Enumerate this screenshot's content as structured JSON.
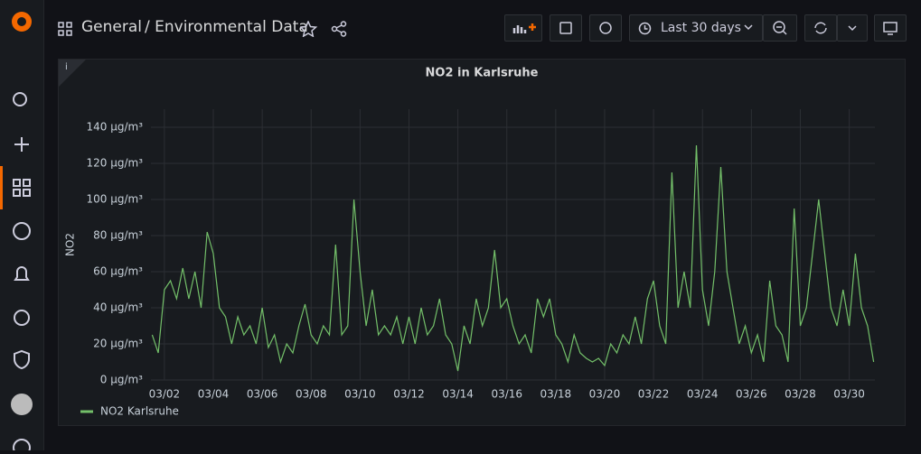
{
  "header": {
    "folder": "General",
    "title": "/ Environmental Data",
    "time_range": "Last 30 days"
  },
  "chart_data": {
    "type": "line",
    "title": "NO2 in Karlsruhe",
    "y_label": "NO2",
    "x": [
      1.5,
      1.75,
      2,
      2.25,
      2.5,
      2.75,
      3,
      3.25,
      3.5,
      3.75,
      4,
      4.25,
      4.5,
      4.75,
      5,
      5.25,
      5.5,
      5.75,
      6,
      6.25,
      6.5,
      6.75,
      7,
      7.25,
      7.5,
      7.75,
      8,
      8.25,
      8.5,
      8.75,
      9,
      9.25,
      9.5,
      9.75,
      10,
      10.25,
      10.5,
      10.75,
      11,
      11.25,
      11.5,
      11.75,
      12,
      12.25,
      12.5,
      12.75,
      13,
      13.25,
      13.5,
      13.75,
      14,
      14.25,
      14.5,
      14.75,
      15,
      15.25,
      15.5,
      15.75,
      16,
      16.25,
      16.5,
      16.75,
      17,
      17.25,
      17.5,
      17.75,
      18,
      18.25,
      18.5,
      18.75,
      19,
      19.25,
      19.5,
      19.75,
      20,
      20.25,
      20.5,
      20.75,
      21,
      21.25,
      21.5,
      21.75,
      22,
      22.25,
      22.5,
      22.75,
      23,
      23.25,
      23.5,
      23.75,
      24,
      24.25,
      24.5,
      24.75,
      25,
      25.25,
      25.5,
      25.75,
      26,
      26.25,
      26.5,
      26.75,
      27,
      27.25,
      27.5,
      27.75,
      28,
      28.25,
      28.5,
      28.75,
      29,
      29.25,
      29.5,
      29.75,
      30,
      30.25,
      30.5,
      30.75,
      31
    ],
    "series": [
      {
        "name": "NO2 Karlsruhe",
        "color": "#73bf69",
        "values": [
          25,
          15,
          50,
          55,
          45,
          62,
          45,
          60,
          40,
          82,
          70,
          40,
          35,
          20,
          35,
          25,
          30,
          20,
          40,
          18,
          25,
          10,
          20,
          15,
          30,
          42,
          25,
          20,
          30,
          25,
          75,
          25,
          30,
          100,
          60,
          30,
          50,
          25,
          30,
          25,
          35,
          20,
          35,
          20,
          40,
          25,
          30,
          45,
          25,
          20,
          5,
          30,
          20,
          45,
          30,
          40,
          72,
          40,
          45,
          30,
          20,
          25,
          15,
          45,
          35,
          45,
          25,
          20,
          10,
          25,
          15,
          12,
          10,
          12,
          8,
          20,
          15,
          25,
          20,
          35,
          20,
          45,
          55,
          30,
          20,
          115,
          40,
          60,
          40,
          130,
          50,
          30,
          60,
          118,
          60,
          40,
          20,
          30,
          15,
          25,
          10,
          55,
          30,
          25,
          10,
          95,
          30,
          40,
          70,
          100,
          70,
          40,
          30,
          50,
          30,
          70,
          40,
          30,
          10
        ]
      }
    ],
    "xlim": [
      1.45,
      31.05
    ],
    "xticks": [
      {
        "value": 2,
        "label": "03/02"
      },
      {
        "value": 4,
        "label": "03/04"
      },
      {
        "value": 6,
        "label": "03/06"
      },
      {
        "value": 8,
        "label": "03/08"
      },
      {
        "value": 10,
        "label": "03/10"
      },
      {
        "value": 12,
        "label": "03/12"
      },
      {
        "value": 14,
        "label": "03/14"
      },
      {
        "value": 16,
        "label": "03/16"
      },
      {
        "value": 18,
        "label": "03/18"
      },
      {
        "value": 20,
        "label": "03/20"
      },
      {
        "value": 22,
        "label": "03/22"
      },
      {
        "value": 24,
        "label": "03/24"
      },
      {
        "value": 26,
        "label": "03/26"
      },
      {
        "value": 28,
        "label": "03/28"
      },
      {
        "value": 30,
        "label": "03/30"
      }
    ],
    "ylim": [
      0,
      150
    ],
    "yticks": [
      {
        "value": 0,
        "label": "0 µg/m³"
      },
      {
        "value": 20,
        "label": "20 µg/m³"
      },
      {
        "value": 40,
        "label": "40 µg/m³"
      },
      {
        "value": 60,
        "label": "60 µg/m³"
      },
      {
        "value": 80,
        "label": "80 µg/m³"
      },
      {
        "value": 100,
        "label": "100 µg/m³"
      },
      {
        "value": 120,
        "label": "120 µg/m³"
      },
      {
        "value": 140,
        "label": "140 µg/m³"
      }
    ],
    "grid": true
  }
}
